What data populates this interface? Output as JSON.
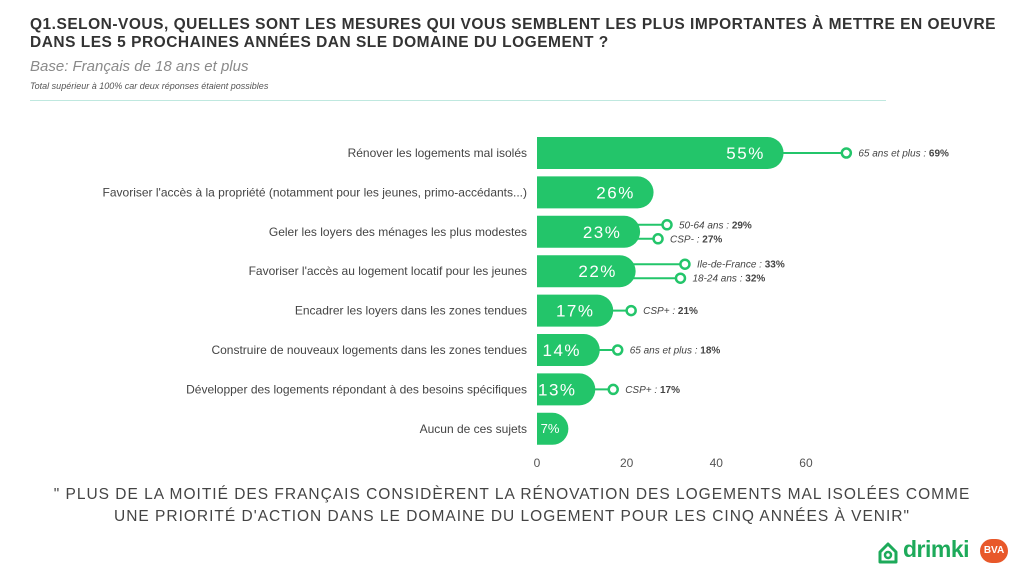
{
  "header": {
    "title": "Q1.SELON-VOUS, QUELLES SONT LES MESURES QUI VOUS SEMBLENT LES PLUS IMPORTANTES À METTRE EN OEUVRE DANS LES 5 PROCHAINES ANNÉES DAN SLE DOMAINE DU LOGEMENT ?",
    "base": "Base: Français de 18 ans et plus",
    "note": "Total supérieur à 100% car deux réponses étaient possibles"
  },
  "chart_data": {
    "type": "bar",
    "orientation": "horizontal",
    "categories": [
      "Rénover les logements mal isolés",
      "Favoriser l'accès à la propriété (notamment pour les jeunes, primo-accédants...)",
      "Geler les loyers des ménages les plus modestes",
      "Favoriser l'accès au logement locatif pour les jeunes",
      "Encadrer les loyers dans les zones tendues",
      "Construire de nouveaux logements dans les zones tendues",
      "Développer des logements répondant à des besoins spécifiques",
      "Aucun de ces sujets"
    ],
    "values": [
      55,
      26,
      23,
      22,
      17,
      14,
      13,
      7
    ],
    "value_labels": [
      "55%",
      "26%",
      "23%",
      "22%",
      "17%",
      "14%",
      "13%",
      "7%"
    ],
    "xlim": [
      0,
      60
    ],
    "xticks": [
      0,
      20,
      40,
      60
    ],
    "grid": false,
    "bar_color": "#23c56a",
    "subgroups": [
      [
        {
          "label": "65 ans et plus",
          "value": 69,
          "text": "69%"
        }
      ],
      [],
      [
        {
          "label": "50-64 ans",
          "value": 29,
          "text": "29%"
        },
        {
          "label": "CSP-",
          "value": 27,
          "text": "27%"
        }
      ],
      [
        {
          "label": "Ile-de-France",
          "value": 33,
          "text": "33%"
        },
        {
          "label": "18-24 ans",
          "value": 32,
          "text": "32%"
        }
      ],
      [
        {
          "label": "CSP+",
          "value": 21,
          "text": "21%"
        }
      ],
      [
        {
          "label": "65 ans et plus",
          "value": 18,
          "text": "18%"
        }
      ],
      [
        {
          "label": "CSP+",
          "value": 17,
          "text": "17%"
        }
      ],
      []
    ]
  },
  "quote": "\" PLUS DE LA MOITIÉ DES FRANÇAIS CONSIDÈRENT LA RÉNOVATION DES LOGEMENTS MAL ISOLÉES COMME UNE PRIORITÉ D'ACTION DANS LE DOMAINE DU LOGEMENT POUR LES CINQ ANNÉES À VENIR\"",
  "brand": {
    "name": "drimki",
    "partner": "BVA",
    "color": "#1daa5a",
    "partner_color": "#e8582a",
    "icon": "house-logo-icon"
  }
}
